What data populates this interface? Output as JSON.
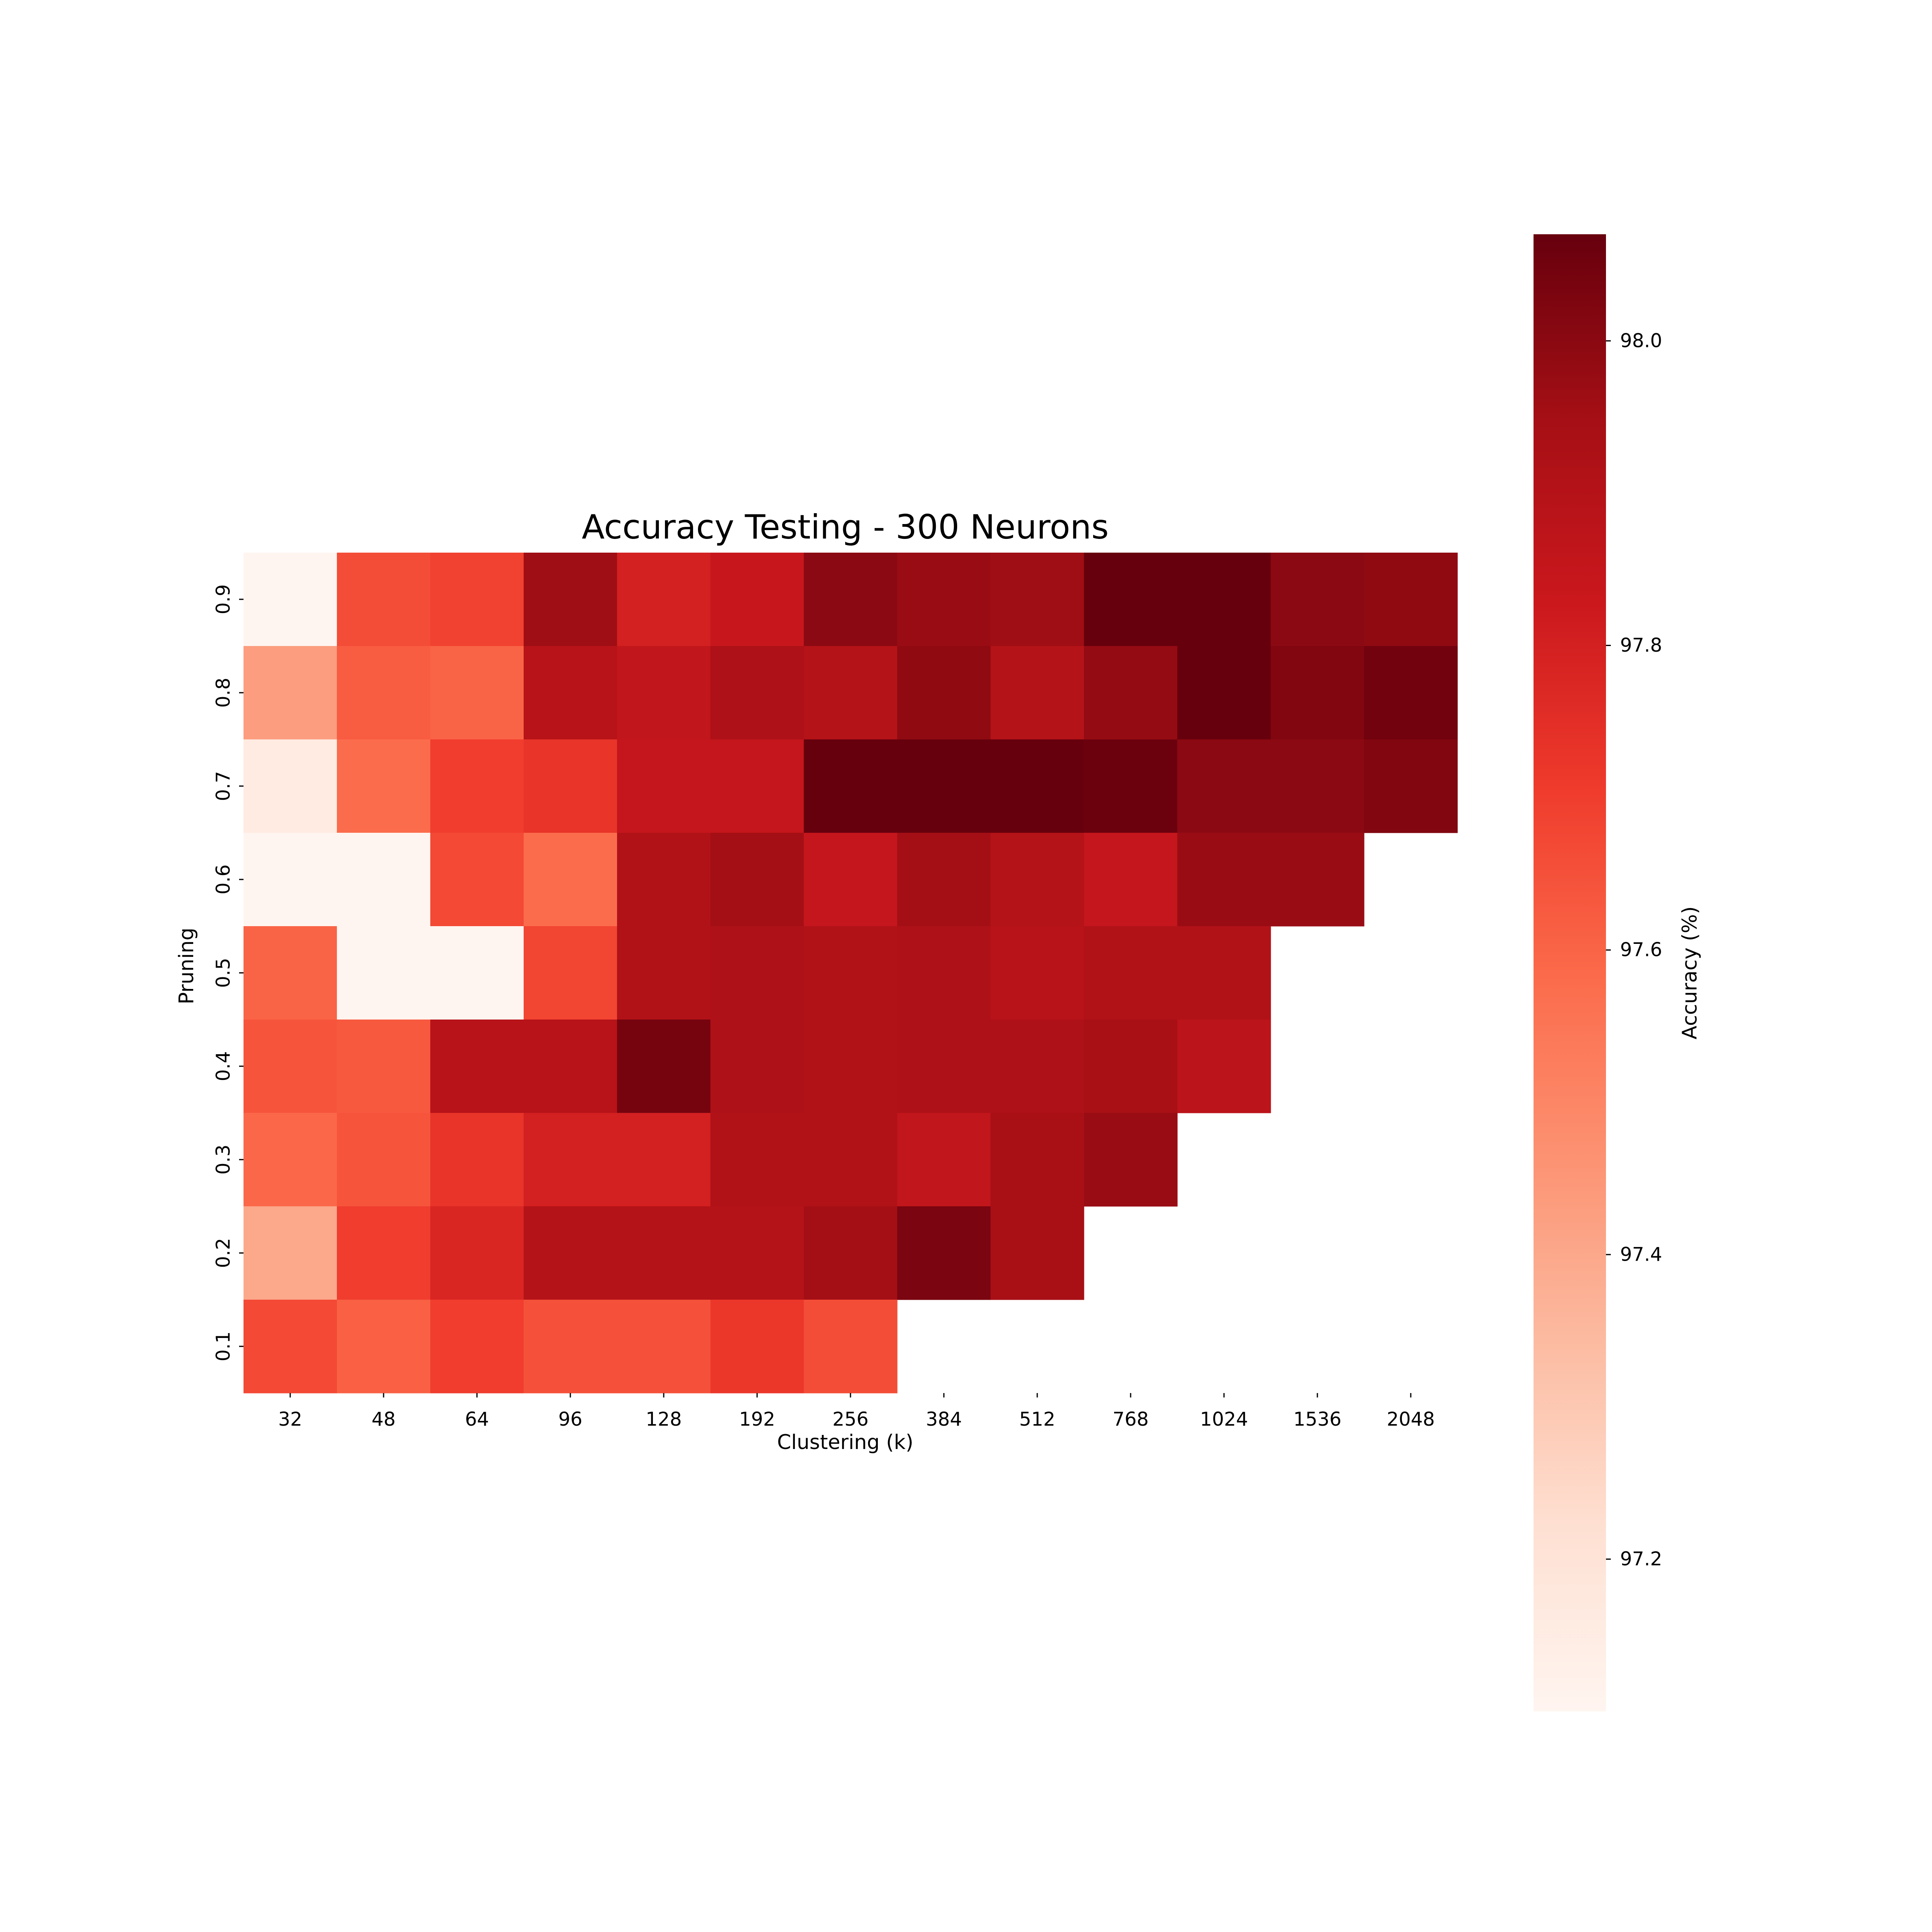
{
  "chart_data": {
    "type": "heatmap",
    "title": "Accuracy Testing - 300 Neurons",
    "xlabel": "Clustering (k)",
    "ylabel": "Pruning",
    "colorbar_label": "Accuracy (%)",
    "colormap": "Reds",
    "vmin": 97.1,
    "vmax": 98.07,
    "colorbar_ticks": [
      "97.2",
      "97.4",
      "97.6",
      "97.8",
      "98.0"
    ],
    "colorbar_tick_values": [
      97.2,
      97.4,
      97.6,
      97.8,
      98.0
    ],
    "x_categories": [
      "32",
      "48",
      "64",
      "96",
      "128",
      "192",
      "256",
      "384",
      "512",
      "768",
      "1024",
      "1536",
      "2048"
    ],
    "y_categories": [
      "0.9",
      "0.8",
      "0.7",
      "0.6",
      "0.5",
      "0.4",
      "0.3",
      "0.2",
      "0.1"
    ],
    "values": [
      [
        97.1,
        97.66,
        97.69,
        97.96,
        97.8,
        97.84,
        98.0,
        97.97,
        97.96,
        98.07,
        98.07,
        98.0,
        97.99
      ],
      [
        97.43,
        97.62,
        97.6,
        97.89,
        97.86,
        97.92,
        97.9,
        97.99,
        97.9,
        97.98,
        98.07,
        98.02,
        98.05
      ],
      [
        97.16,
        97.58,
        97.7,
        97.73,
        97.85,
        97.85,
        98.07,
        98.07,
        98.07,
        98.06,
        98.0,
        98.0,
        98.02
      ],
      [
        97.1,
        97.1,
        97.67,
        97.58,
        97.91,
        97.95,
        97.85,
        97.95,
        97.9,
        97.85,
        97.97,
        97.97,
        null
      ],
      [
        97.6,
        97.1,
        97.1,
        97.68,
        97.91,
        97.92,
        97.91,
        97.92,
        97.89,
        97.91,
        97.91,
        null,
        null
      ],
      [
        97.64,
        97.63,
        97.89,
        97.89,
        98.04,
        97.92,
        97.91,
        97.92,
        97.92,
        97.94,
        97.88,
        null,
        null
      ],
      [
        97.59,
        97.64,
        97.73,
        97.8,
        97.8,
        97.91,
        97.91,
        97.86,
        97.94,
        97.97,
        null,
        null,
        null
      ],
      [
        97.4,
        97.7,
        97.78,
        97.9,
        97.9,
        97.9,
        97.95,
        98.03,
        97.94,
        null,
        null,
        null,
        null
      ],
      [
        97.67,
        97.61,
        97.7,
        97.65,
        97.65,
        97.72,
        97.66,
        null,
        null,
        null,
        null,
        null,
        null
      ]
    ],
    "grid": false,
    "legend": "colorbar-right"
  }
}
